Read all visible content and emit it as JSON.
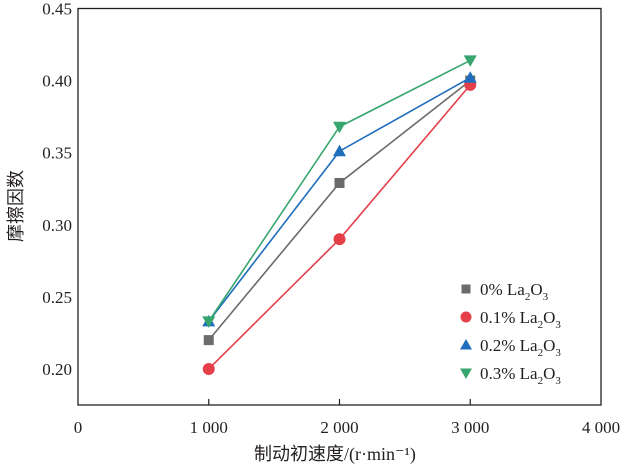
{
  "chart_data": {
    "type": "line",
    "title": "",
    "xlabel": "制动初速度/(r·min⁻¹)",
    "ylabel": "摩擦因数",
    "xlim": [
      0,
      4000
    ],
    "ylim": [
      0.175,
      0.45
    ],
    "xticks": [
      0,
      1000,
      2000,
      3000,
      4000
    ],
    "xtick_labels": [
      "0",
      "1 000",
      "2 000",
      "3 000",
      "4 000"
    ],
    "yticks": [
      0.2,
      0.25,
      0.3,
      0.35,
      0.4,
      0.45
    ],
    "ytick_labels": [
      "0.20",
      "0.25",
      "0.30",
      "0.35",
      "0.40",
      "0.45"
    ],
    "grid": false,
    "legend_position": "bottom-right",
    "x": [
      1000,
      2000,
      3000
    ],
    "series": [
      {
        "name": "0% La2O3",
        "label_pre": "0% La",
        "color": "#6b6b6b",
        "marker": "square",
        "values": [
          0.22,
          0.329,
          0.4
        ]
      },
      {
        "name": "0.1% La2O3",
        "label_pre": "0.1% La",
        "color": "#e5404a",
        "marker": "circle",
        "values": [
          0.2,
          0.29,
          0.397
        ]
      },
      {
        "name": "0.2% La2O3",
        "label_pre": "0.2% La",
        "color": "#1f6dbd",
        "marker": "triangle-up",
        "values": [
          0.233,
          0.351,
          0.402
        ]
      },
      {
        "name": "0.3% La2O3",
        "label_pre": "0.3% La",
        "color": "#36a56e",
        "marker": "triangle-down",
        "values": [
          0.233,
          0.368,
          0.414
        ]
      }
    ]
  }
}
